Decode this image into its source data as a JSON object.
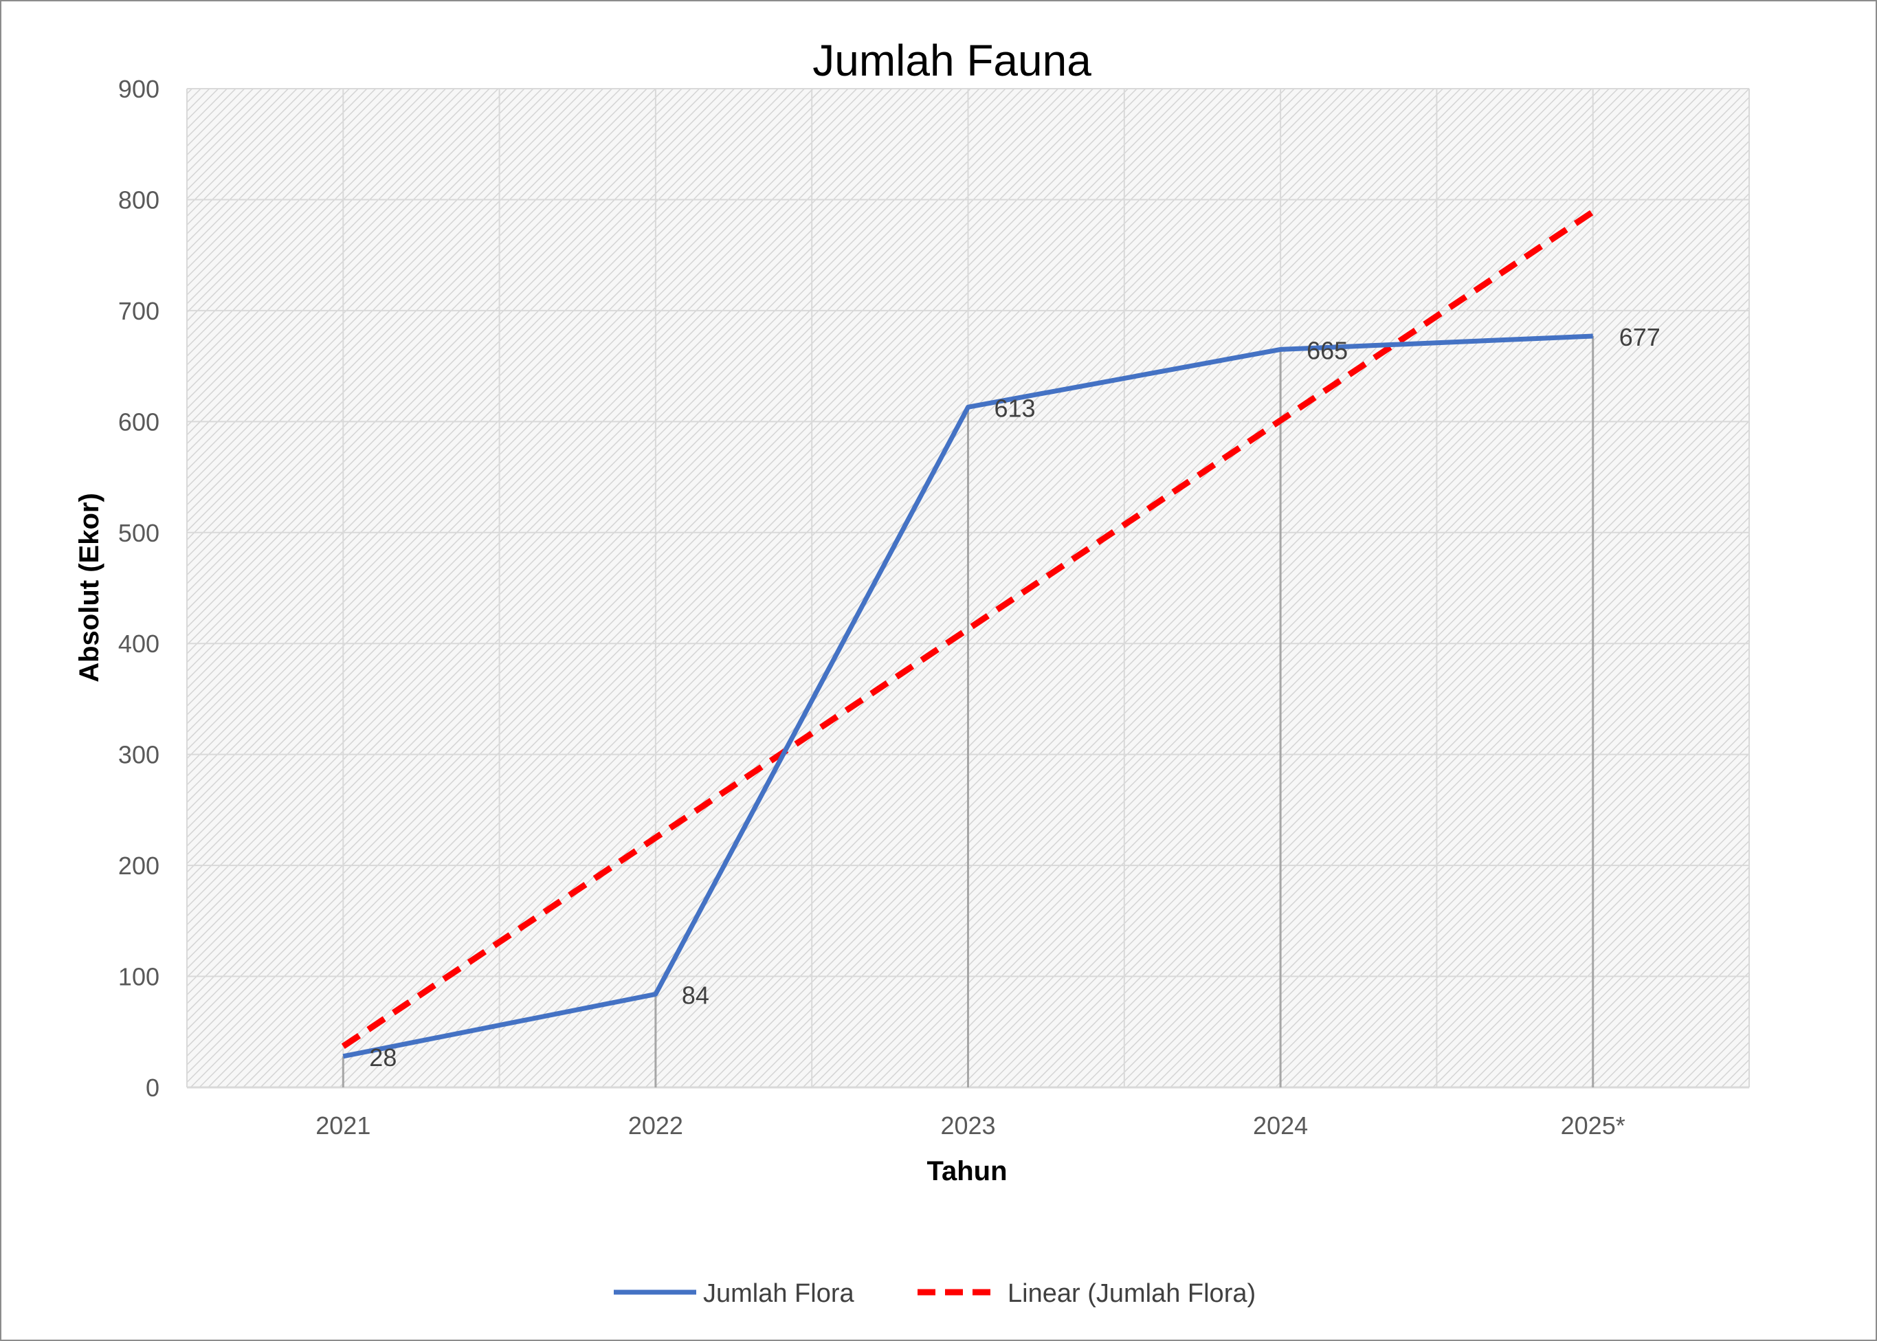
{
  "chart_data": {
    "type": "line",
    "title": "Jumlah Fauna",
    "xlabel": "Tahun",
    "ylabel": "Absolut (Ekor)",
    "categories": [
      "2021",
      "2022",
      "2023",
      "2024",
      "2025*"
    ],
    "ylim": [
      0,
      900
    ],
    "yticks": [
      0,
      100,
      200,
      300,
      400,
      500,
      600,
      700,
      800,
      900
    ],
    "series": [
      {
        "name": "Jumlah Flora",
        "values": [
          28,
          84,
          613,
          665,
          677
        ],
        "data_labels": [
          "28",
          "84",
          "613",
          "665",
          "677"
        ],
        "color": "#4472c4",
        "style": "solid"
      },
      {
        "name": "Linear (Jumlah Flora)",
        "values": [
          37,
          225,
          413,
          601,
          789
        ],
        "color": "#ff0000",
        "style": "dashed",
        "trendline": true
      }
    ],
    "drop_lines": true,
    "grid": true,
    "legend_position": "bottom",
    "plot_background": "hatched light gray",
    "colors": {
      "border": "#8c8c8c",
      "grid": "#d9d9d9",
      "tick_text": "#595959",
      "title_text": "#000000",
      "data_label_text": "#404040"
    }
  }
}
